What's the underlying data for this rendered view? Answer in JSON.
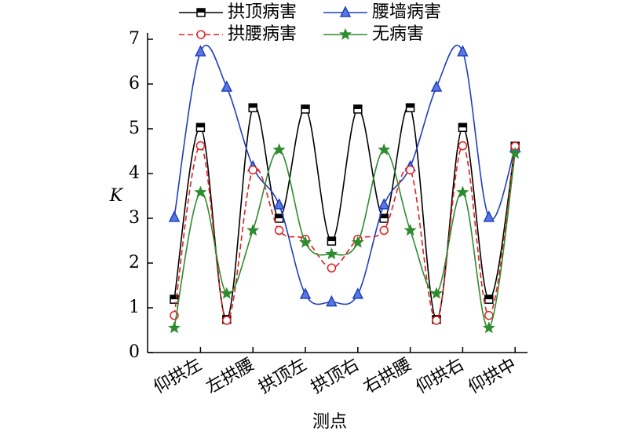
{
  "chart_data": {
    "type": "line",
    "categories": [
      null,
      "仰拱左",
      null,
      "左拱腰",
      null,
      "拱顶左",
      null,
      "拱顶右",
      null,
      "右拱腰",
      null,
      "仰拱右",
      null,
      "仰拱中"
    ],
    "x_label": "测点",
    "y_label": "K",
    "ylim": [
      0,
      7
    ],
    "yticks": [
      0,
      1,
      2,
      3,
      4,
      5,
      6,
      7
    ],
    "series": [
      {
        "name": "拱顶病害",
        "color": "#000000",
        "marker": "square",
        "dash": false,
        "values": [
          1.19,
          5.03,
          0.74,
          5.47,
          3.0,
          5.44,
          2.49,
          5.44,
          3.0,
          5.47,
          0.74,
          5.03,
          1.19,
          4.61
        ]
      },
      {
        "name": "腰墙病害",
        "color": "#1f3fbf",
        "marker": "triangle",
        "dash": false,
        "values": [
          3.02,
          6.72,
          5.93,
          4.15,
          3.3,
          1.3,
          1.13,
          1.3,
          3.3,
          4.15,
          5.93,
          6.72,
          3.02,
          4.58
        ]
      },
      {
        "name": "拱腰病害",
        "color": "#e02020",
        "marker": "circle",
        "dash": true,
        "values": [
          0.83,
          4.62,
          0.72,
          4.08,
          2.73,
          2.53,
          1.89,
          2.53,
          2.73,
          4.08,
          0.72,
          4.62,
          0.83,
          4.61
        ]
      },
      {
        "name": "无病害",
        "color": "#2e8b2e",
        "marker": "star",
        "dash": false,
        "values": [
          0.55,
          3.58,
          1.32,
          2.73,
          4.53,
          2.46,
          2.2,
          2.46,
          4.53,
          2.73,
          1.32,
          3.58,
          0.55,
          4.45
        ]
      }
    ]
  }
}
